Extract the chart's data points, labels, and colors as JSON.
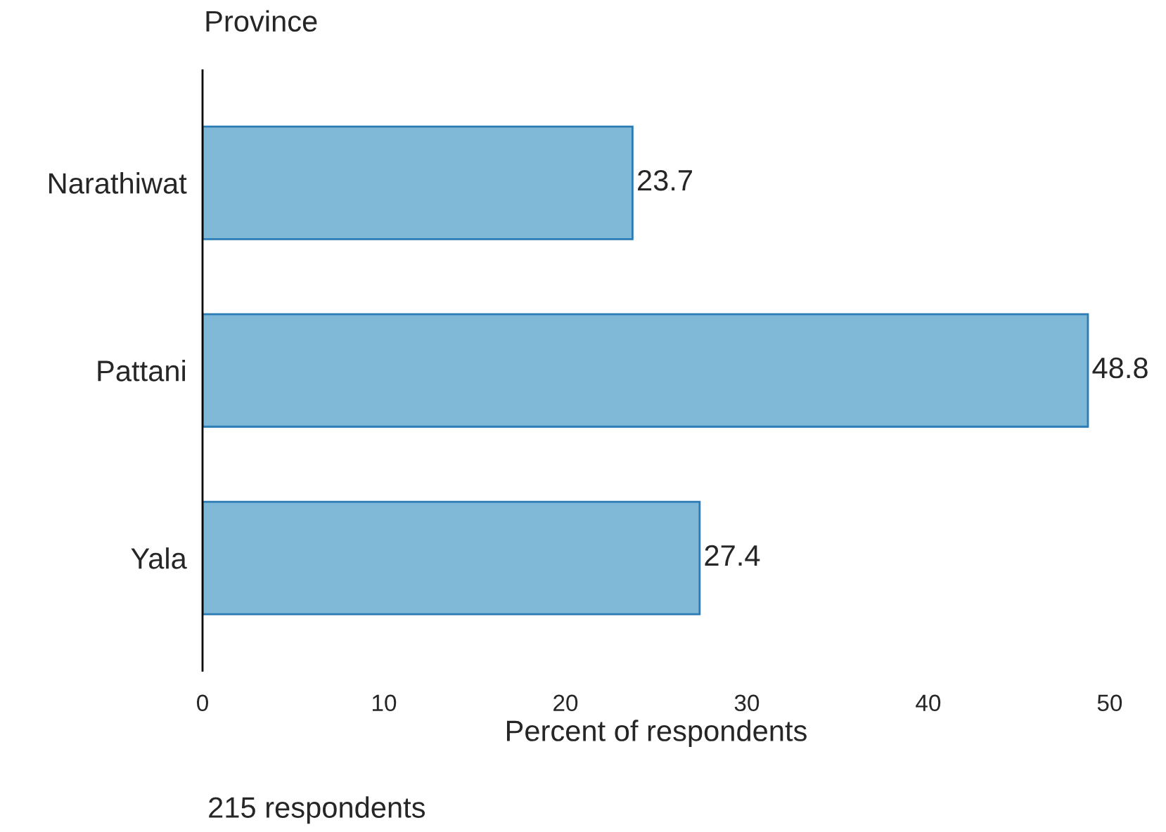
{
  "chart_data": {
    "type": "bar",
    "orientation": "horizontal",
    "ylabel": "Province",
    "xlabel": "Percent of respondents",
    "categories": [
      "Narathiwat",
      "Pattani",
      "Yala"
    ],
    "values": [
      23.7,
      48.8,
      27.4
    ],
    "color": "#80b8d8",
    "xlim": [
      0,
      50
    ],
    "xticks": [
      0,
      10,
      20,
      30,
      40,
      50
    ],
    "data_labels": true,
    "grid": false,
    "annotations": [
      "215 respondents"
    ]
  }
}
